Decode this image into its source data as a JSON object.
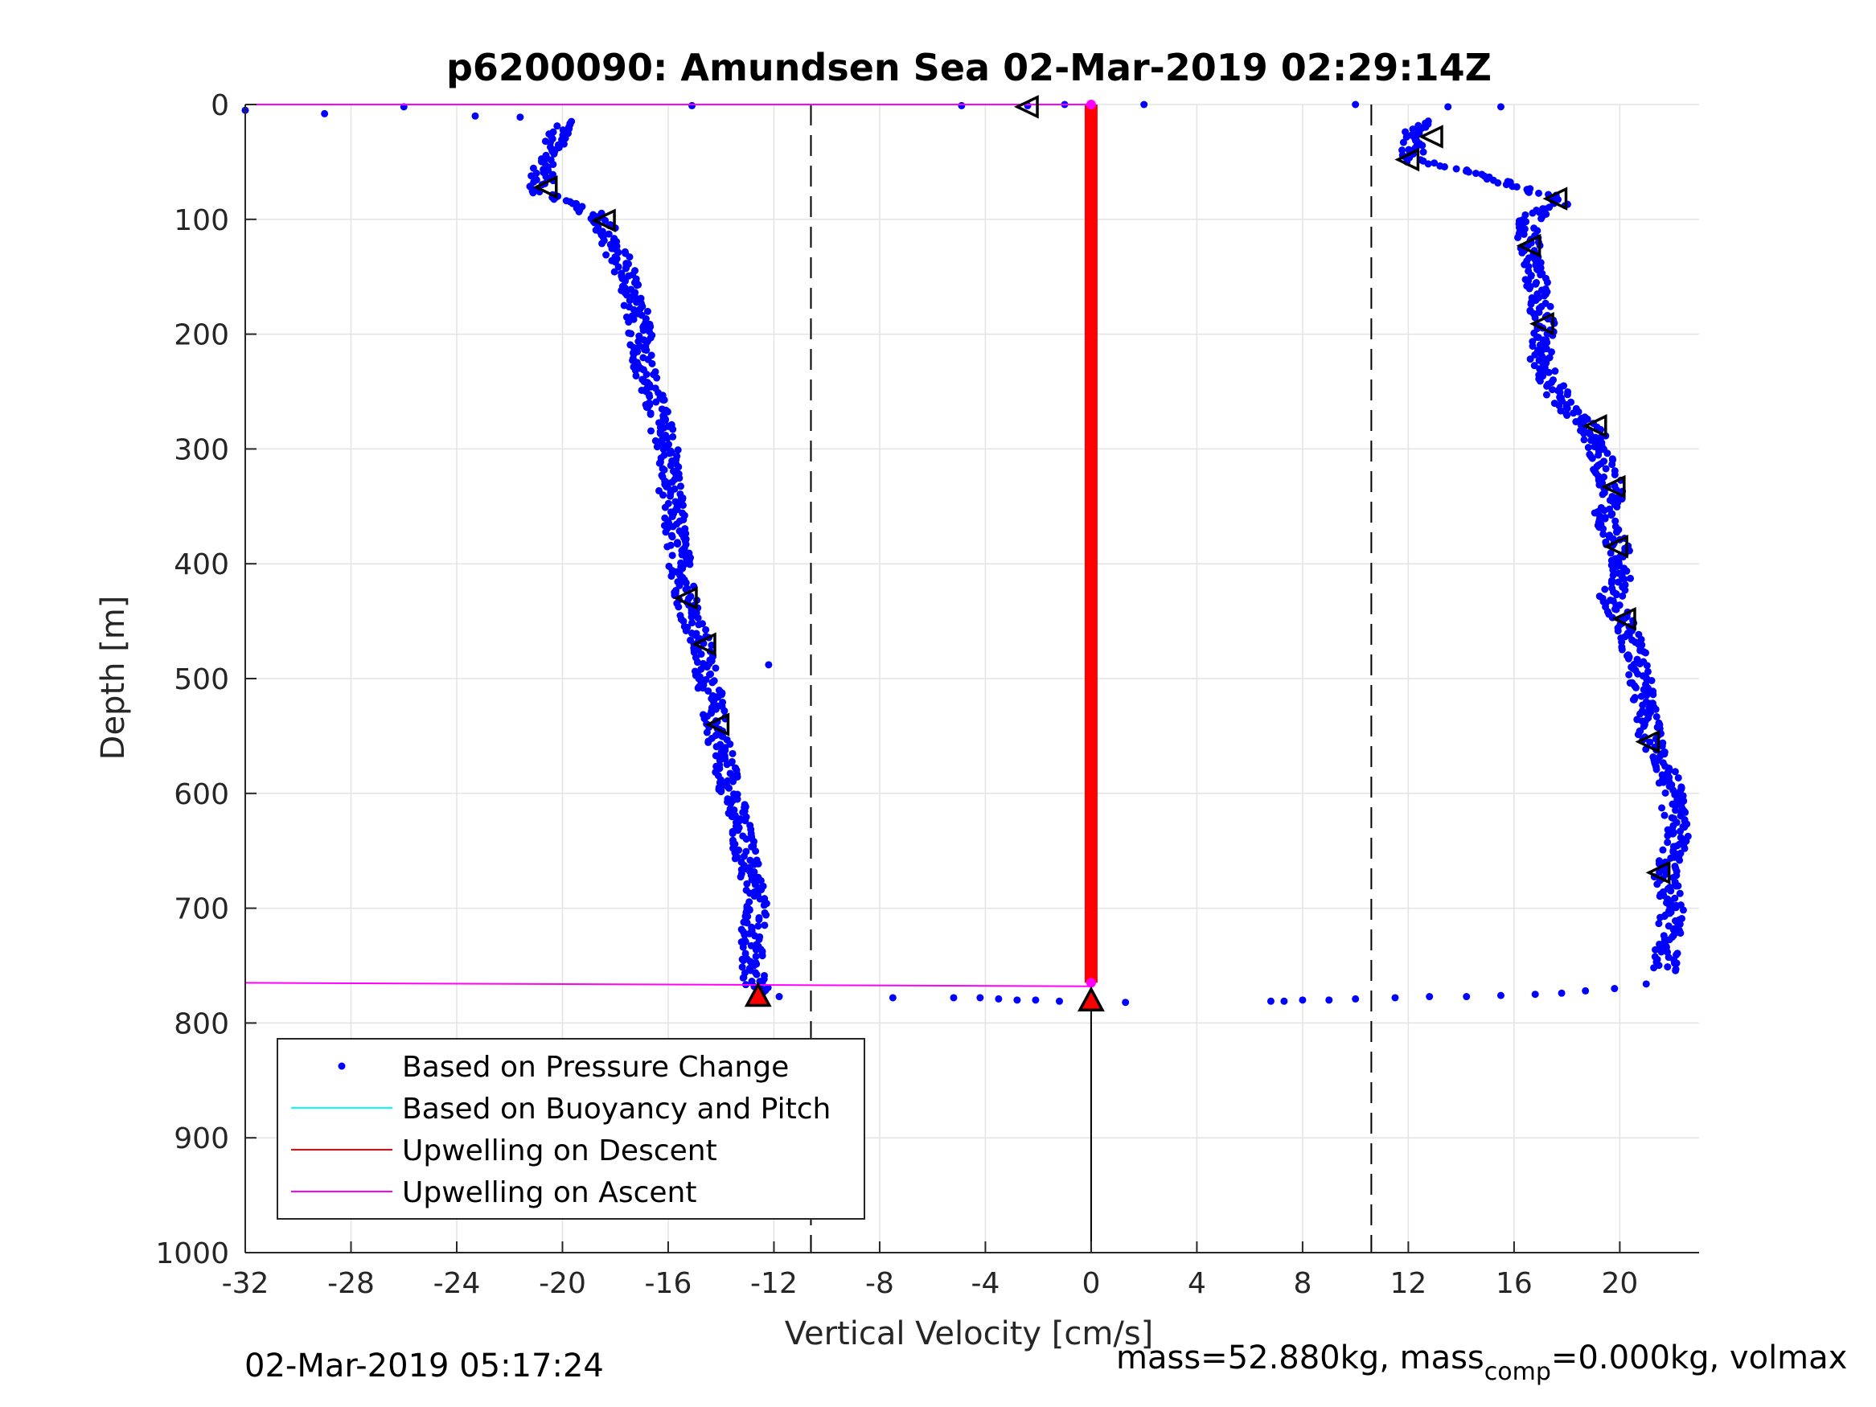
{
  "chart_data": {
    "type": "scatter",
    "title": "p6200090: Amundsen Sea 02-Mar-2019 02:29:14Z",
    "xlabel": "Vertical Velocity [cm/s]",
    "ylabel": "Depth [m]",
    "xlim": [
      -32,
      23
    ],
    "ylim": [
      0,
      1000
    ],
    "y_reversed": true,
    "grid": true,
    "xticks": [
      -32,
      -28,
      -24,
      -20,
      -16,
      -12,
      -8,
      -4,
      0,
      4,
      8,
      12,
      16,
      20
    ],
    "yticks": [
      0,
      100,
      200,
      300,
      400,
      500,
      600,
      700,
      800,
      900,
      1000
    ],
    "threshold_lines_x": [
      -10.6,
      10.6
    ],
    "zero_line": {
      "x": 0,
      "from_depth": 780,
      "to_depth": 1000
    },
    "legend": {
      "placement": "bottom-left",
      "entries": [
        {
          "label": "Based on Pressure Change",
          "color": "#0000ff",
          "marker": "dot"
        },
        {
          "label": "Based on Buoyancy and Pitch",
          "color": "#00ffff",
          "marker": "line"
        },
        {
          "label": "Upwelling on Descent",
          "color": "#ff0000",
          "marker": "line"
        },
        {
          "label": "Upwelling on Ascent",
          "color": "#ff00ff",
          "marker": "line"
        }
      ]
    },
    "series": [
      {
        "name": "Based on Pressure Change",
        "color": "#0000ff",
        "descent_profile": [
          [
            -19.8,
            15
          ],
          [
            -20.3,
            30
          ],
          [
            -20.6,
            50
          ],
          [
            -20.9,
            75
          ],
          [
            -19.3,
            90
          ],
          [
            -18.5,
            100
          ],
          [
            -18.2,
            120
          ],
          [
            -17.5,
            150
          ],
          [
            -17.2,
            180
          ],
          [
            -17.0,
            210
          ],
          [
            -16.8,
            240
          ],
          [
            -16.4,
            270
          ],
          [
            -16.0,
            300
          ],
          [
            -15.9,
            340
          ],
          [
            -15.7,
            380
          ],
          [
            -15.3,
            430
          ],
          [
            -14.8,
            470
          ],
          [
            -14.5,
            500
          ],
          [
            -14.2,
            540
          ],
          [
            -13.9,
            570
          ],
          [
            -13.6,
            600
          ],
          [
            -13.2,
            640
          ],
          [
            -12.9,
            670
          ],
          [
            -12.6,
            700
          ],
          [
            -12.9,
            730
          ],
          [
            -12.8,
            760
          ],
          [
            -12.6,
            775
          ]
        ],
        "ascent_profile": [
          [
            12.5,
            15
          ],
          [
            12.0,
            30
          ],
          [
            12.3,
            50
          ],
          [
            14.5,
            60
          ],
          [
            16.0,
            70
          ],
          [
            17.8,
            85
          ],
          [
            16.5,
            100
          ],
          [
            16.6,
            130
          ],
          [
            16.9,
            160
          ],
          [
            17.1,
            190
          ],
          [
            17.0,
            220
          ],
          [
            17.8,
            260
          ],
          [
            19.0,
            285
          ],
          [
            19.3,
            310
          ],
          [
            19.8,
            340
          ],
          [
            19.4,
            360
          ],
          [
            19.9,
            385
          ],
          [
            20.2,
            410
          ],
          [
            19.6,
            430
          ],
          [
            20.2,
            450
          ],
          [
            20.6,
            480
          ],
          [
            20.9,
            520
          ],
          [
            21.2,
            555
          ],
          [
            21.8,
            580
          ],
          [
            22.0,
            610
          ],
          [
            22.2,
            640
          ],
          [
            21.7,
            670
          ],
          [
            22.0,
            700
          ],
          [
            21.8,
            730
          ],
          [
            21.7,
            755
          ]
        ],
        "surface_points": [
          [
            -32.0,
            5
          ],
          [
            -29.0,
            8
          ],
          [
            -26.0,
            2
          ],
          [
            -23.3,
            10
          ],
          [
            -21.6,
            11
          ],
          [
            -15.1,
            1
          ],
          [
            -4.9,
            1
          ],
          [
            -2.4,
            1
          ],
          [
            -1.0,
            0
          ],
          [
            0.0,
            0
          ],
          [
            2.0,
            0
          ],
          [
            10.0,
            0
          ],
          [
            13.5,
            2
          ],
          [
            15.5,
            2
          ]
        ],
        "bottom_points": [
          [
            -12.2,
            488
          ],
          [
            -11.8,
            777
          ],
          [
            -7.5,
            778
          ],
          [
            -5.2,
            778
          ],
          [
            -4.2,
            778
          ],
          [
            -3.5,
            779
          ],
          [
            -2.8,
            780
          ],
          [
            -2.1,
            780
          ],
          [
            -1.2,
            781
          ],
          [
            1.3,
            782
          ],
          [
            6.8,
            781
          ],
          [
            7.3,
            781
          ],
          [
            8.0,
            780
          ],
          [
            9.0,
            780
          ],
          [
            10.0,
            779
          ],
          [
            11.5,
            778
          ],
          [
            12.8,
            777
          ],
          [
            14.2,
            777
          ],
          [
            15.5,
            776
          ],
          [
            16.8,
            775
          ],
          [
            17.8,
            774
          ],
          [
            18.7,
            772
          ],
          [
            19.8,
            770
          ],
          [
            21.0,
            766
          ]
        ]
      },
      {
        "name": "Upwelling on Descent",
        "color": "#ff0000",
        "x": 0,
        "depth_range": [
          0,
          765
        ]
      },
      {
        "name": "Upwelling on Ascent",
        "color": "#ff00ff",
        "lines": [
          {
            "x": [
              -32,
              0
            ],
            "depth": [
              0,
              0
            ]
          },
          {
            "x": [
              -32,
              0
            ],
            "depth": [
              765,
              768
            ]
          }
        ]
      }
    ],
    "triangle_markers": [
      [
        -2.4,
        2
      ],
      [
        12.9,
        28
      ],
      [
        12.0,
        48
      ],
      [
        -20.6,
        72
      ],
      [
        17.6,
        82
      ],
      [
        -18.4,
        101
      ],
      [
        16.6,
        123
      ],
      [
        17.1,
        191
      ],
      [
        19.1,
        280
      ],
      [
        19.8,
        333
      ],
      [
        19.9,
        385
      ],
      [
        -15.3,
        430
      ],
      [
        20.2,
        448
      ],
      [
        -14.6,
        470
      ],
      [
        -14.1,
        540
      ],
      [
        21.1,
        555
      ],
      [
        21.5,
        669
      ]
    ],
    "endpoint_markers": [
      {
        "x": -12.6,
        "depth": 777,
        "color": "#ff0000"
      },
      {
        "x": 0,
        "depth": 781,
        "color": "#ff0000"
      }
    ]
  },
  "footer": {
    "timestamp": "02-Mar-2019 05:17:24",
    "mass_text": "mass=52.880kg, mass",
    "mass_sub": "comp",
    "mass_rest": "=0.000kg, volmax"
  }
}
